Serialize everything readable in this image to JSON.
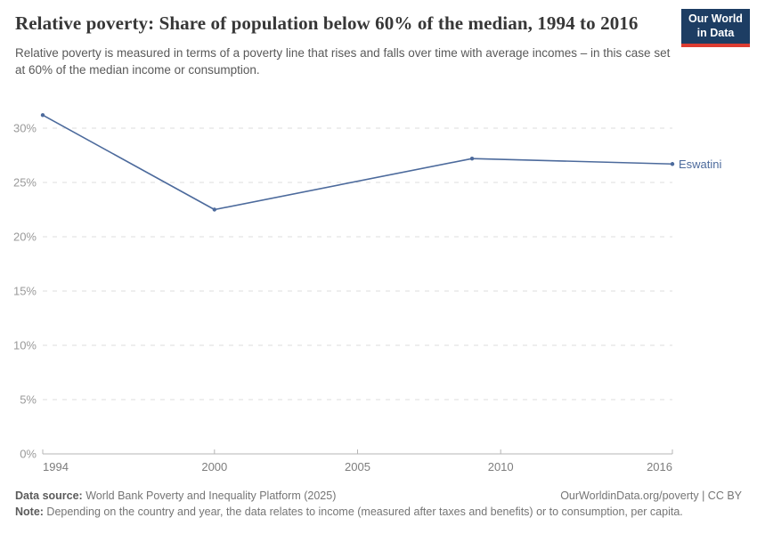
{
  "header": {
    "title": "Relative poverty: Share of population below 60% of the median, 1994 to 2016",
    "subtitle": "Relative poverty is measured in terms of a poverty line that rises and falls over time with average incomes – in this case set at 60% of the median income or consumption."
  },
  "logo": {
    "line1": "Our World",
    "line2": "in Data",
    "background_color": "#1d3d63",
    "accent_color": "#dc3c31"
  },
  "chart_data": {
    "type": "line",
    "title": "Relative poverty: Share of population below 60% of the median, 1994 to 2016",
    "series": [
      {
        "name": "Eswatini",
        "x": [
          1994,
          2000,
          2009,
          2016
        ],
        "values": [
          31.2,
          22.5,
          27.2,
          26.7
        ]
      }
    ],
    "xlabel": "",
    "ylabel": "",
    "xlim": [
      1994,
      2016
    ],
    "ylim": [
      0,
      30
    ],
    "xticks": [
      1994,
      2000,
      2005,
      2010,
      2016
    ],
    "yticks": [
      0,
      5,
      10,
      15,
      20,
      25,
      30
    ],
    "ytick_suffix": "%",
    "grid": "horizontal-dashed",
    "legend_position": "end-of-line",
    "line_color": "#4c6a9c"
  },
  "footer": {
    "datasource_label": "Data source:",
    "datasource_text": " World Bank Poverty and Inequality Platform (2025)",
    "link_text": "OurWorldinData.org/poverty | CC BY",
    "note_label": "Note:",
    "note_text": " Depending on the country and year, the data relates to income (measured after taxes and benefits) or to consumption, per capita."
  }
}
